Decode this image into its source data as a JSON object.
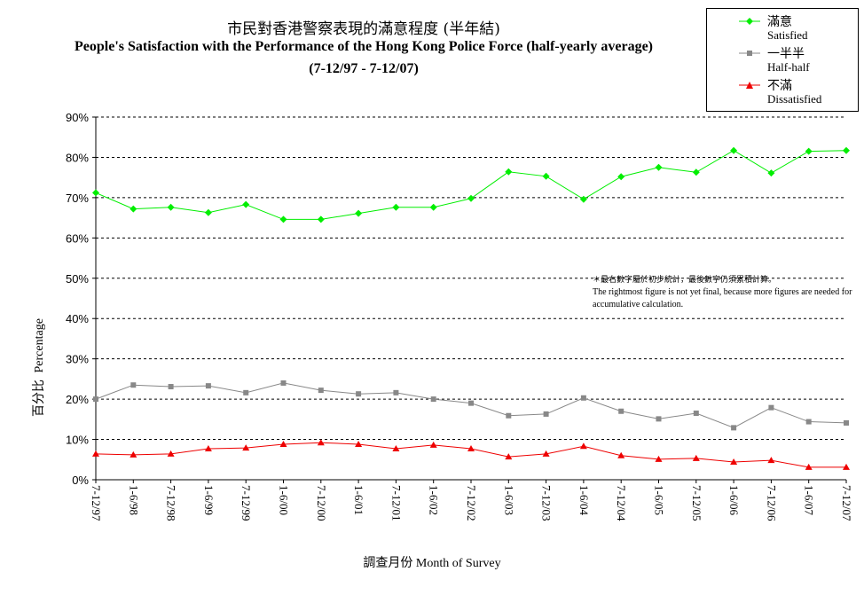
{
  "title_cn": "市民對香港警察表現的滿意程度 (半年結)",
  "title_en": "People's Satisfaction with the Performance of the Hong Kong Police Force (half-yearly average)",
  "subtitle": "(7-12/97  - 7-12/07)",
  "legend": [
    {
      "cn": "滿意",
      "en": "Satisfied",
      "color": "#00ee00",
      "marker": "diamond"
    },
    {
      "cn": "一半半",
      "en": "Half-half",
      "color": "#888888",
      "marker": "square"
    },
    {
      "cn": "不滿",
      "en": "Dissatisfied",
      "color": "#ee0000",
      "marker": "triangle"
    }
  ],
  "note_cn": "＊最右數字屬於初步統計，最後數字仍須累積計算。",
  "note_en": "The rightmost figure is not yet final, because more figures are needed for accumulative calculation.",
  "ylabel_cn": "百分比",
  "ylabel_en": "Percentage",
  "xlabel_cn": "調查月份",
  "xlabel_en": "Month of Survey",
  "chart_data": {
    "type": "line",
    "title": "People's Satisfaction with the Performance of the Hong Kong Police Force (half-yearly average)",
    "xlabel": "調查月份 Month of Survey",
    "ylabel": "百分比 Percentage",
    "ylim": [
      0,
      90
    ],
    "yticks": [
      "0%",
      "10%",
      "20%",
      "30%",
      "40%",
      "50%",
      "60%",
      "70%",
      "80%",
      "90%"
    ],
    "grid": "horizontal dashed",
    "legend_position": "top-right",
    "categories": [
      "7-12/97",
      "1-6/98",
      "7-12/98",
      "1-6/99",
      "7-12/99",
      "1-6/00",
      "7-12/00",
      "1-6/01",
      "7-12/01",
      "1-6/02",
      "7-12/02",
      "1-6/03",
      "7-12/03",
      "1-6/04",
      "7-12/04",
      "1-6/05",
      "7-12/05",
      "1-6/06",
      "7-12/06",
      "1-6/07",
      "7-12/07"
    ],
    "series": [
      {
        "name": "Satisfied",
        "color": "#00ee00",
        "values": [
          71.2,
          67.2,
          67.6,
          66.3,
          68.3,
          64.6,
          64.6,
          66.1,
          67.6,
          67.6,
          69.8,
          76.4,
          75.3,
          69.6,
          75.2,
          77.5,
          76.3,
          81.7,
          76.1,
          81.5,
          81.7
        ]
      },
      {
        "name": "Half-half",
        "color": "#888888",
        "values": [
          20.0,
          23.5,
          23.1,
          23.3,
          21.6,
          24.0,
          22.2,
          21.3,
          21.6,
          20.0,
          19.0,
          15.9,
          16.3,
          20.3,
          17.0,
          15.1,
          16.5,
          12.9,
          17.9,
          14.4,
          14.1
        ]
      },
      {
        "name": "Dissatisfied",
        "color": "#ee0000",
        "values": [
          6.4,
          6.2,
          6.4,
          7.7,
          7.9,
          8.8,
          9.2,
          8.8,
          7.7,
          8.6,
          7.7,
          5.7,
          6.4,
          8.3,
          6.0,
          5.1,
          5.3,
          4.4,
          4.8,
          3.1,
          3.1
        ]
      }
    ]
  }
}
